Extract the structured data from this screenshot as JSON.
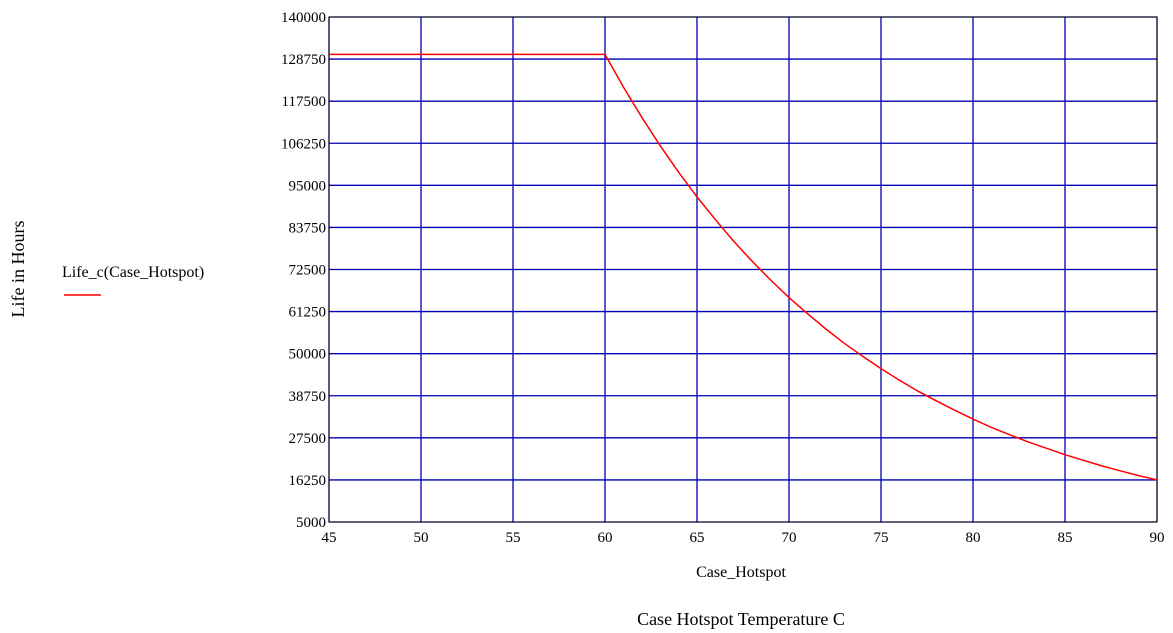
{
  "chart_data": {
    "type": "line",
    "title": "",
    "xlabel": "Case_Hotspot",
    "xlabel_secondary": "Case Hotspot Temperature C",
    "ylabel": "Life in Hours",
    "xlim": [
      45,
      90
    ],
    "ylim": [
      5000,
      140000
    ],
    "x_ticks": [
      "45",
      "50",
      "55",
      "60",
      "65",
      "70",
      "75",
      "80",
      "85",
      "90"
    ],
    "y_ticks": [
      "5000",
      "16250",
      "27500",
      "38750",
      "50000",
      "61250",
      "72500",
      "83750",
      "95000",
      "106250",
      "117500",
      "128750",
      "140000"
    ],
    "grid": true,
    "legend_position": "left",
    "colors": {
      "grid": "#0000b4",
      "series": "#ff0000",
      "axis": "#000000"
    },
    "series": [
      {
        "name": "Life_c(Case_Hotspot)",
        "x": [
          45,
          50,
          55,
          60,
          61,
          62,
          63,
          64,
          65,
          66,
          67,
          68,
          69,
          70,
          71,
          72,
          73,
          74,
          75,
          76,
          77,
          78,
          79,
          80,
          81,
          82,
          83,
          84,
          85,
          86,
          87,
          88,
          89,
          90
        ],
        "y": [
          130000,
          130000,
          130000,
          130000,
          121300,
          113200,
          105600,
          98500,
          91900,
          85800,
          80000,
          74700,
          69700,
          65000,
          60700,
          56600,
          52800,
          49300,
          46000,
          42900,
          40000,
          37400,
          34900,
          32500,
          30300,
          28300,
          26400,
          24700,
          23000,
          21500,
          20000,
          18700,
          17400,
          16250
        ]
      }
    ]
  }
}
